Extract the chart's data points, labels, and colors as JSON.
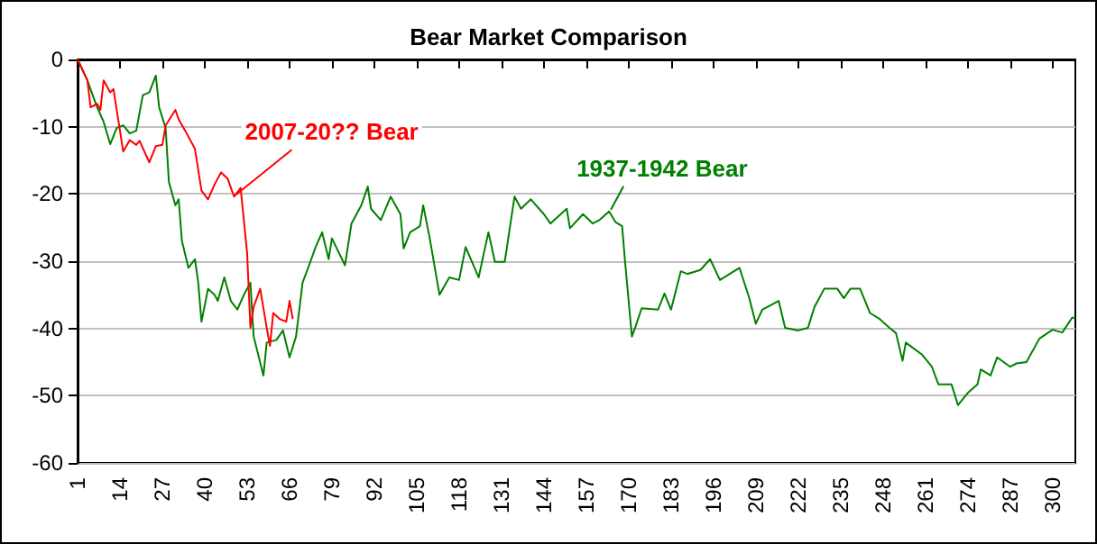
{
  "chart_data": {
    "type": "line",
    "title": "Bear Market Comparison",
    "xlim": [
      1,
      307
    ],
    "xticks": [
      1,
      14,
      27,
      40,
      53,
      66,
      79,
      92,
      105,
      118,
      131,
      144,
      157,
      170,
      183,
      196,
      209,
      222,
      235,
      248,
      261,
      274,
      287,
      300
    ],
    "ylim": [
      -60,
      0
    ],
    "yticks": [
      -60,
      -50,
      -40,
      -30,
      -20,
      -10,
      0
    ],
    "grid": "y",
    "marker": "none",
    "line_style": "solid",
    "series": [
      {
        "color": "#008000",
        "x": [
          1,
          4,
          6,
          7,
          9,
          11,
          13,
          15,
          17,
          19,
          21,
          23,
          25,
          26,
          28,
          29,
          31,
          32,
          33,
          35,
          37,
          38,
          39,
          41,
          43,
          44,
          46,
          48,
          50,
          52,
          54,
          55,
          58,
          59,
          62,
          64,
          66,
          68,
          70,
          72,
          74,
          76,
          78,
          79,
          83,
          85,
          88,
          90,
          91,
          94,
          97,
          100,
          101,
          103,
          106,
          107,
          109,
          112,
          115,
          118,
          120,
          124,
          127,
          129,
          132,
          135,
          137,
          140,
          144,
          146,
          151,
          152,
          156,
          159,
          161,
          164,
          166,
          168,
          169,
          171,
          172,
          174,
          179,
          181,
          183,
          186,
          188,
          192,
          195,
          198,
          201,
          204,
          207,
          209,
          211,
          216,
          218,
          222,
          225,
          227,
          230,
          234,
          236,
          238,
          241,
          244,
          247,
          250,
          252,
          254,
          255,
          260,
          263,
          265,
          269,
          271,
          274,
          277,
          278,
          281,
          283,
          287,
          289,
          292,
          296,
          300,
          303,
          306,
          307
        ],
        "values": [
          0,
          -3.1,
          -5.8,
          -7.1,
          -9.3,
          -12.6,
          -10.2,
          -9.8,
          -11,
          -10.6,
          -5.3,
          -4.9,
          -2.4,
          -7.1,
          -10.2,
          -18.2,
          -21.7,
          -20.8,
          -27,
          -31,
          -29.7,
          -33.2,
          -39,
          -34.1,
          -35,
          -35.9,
          -32.4,
          -35.9,
          -37.2,
          -35,
          -33.2,
          -41.2,
          -47,
          -42.1,
          -41.7,
          -40.3,
          -44.3,
          -41.2,
          -33.2,
          -30.6,
          -27.9,
          -25.7,
          -29.7,
          -26.6,
          -30.6,
          -24.4,
          -21.7,
          -18.9,
          -22.2,
          -23.9,
          -20.4,
          -23,
          -28.1,
          -25.7,
          -24.8,
          -21.7,
          -26.6,
          -35,
          -32.4,
          -32.8,
          -27.9,
          -32.4,
          -25.7,
          -30.1,
          -30.1,
          -20.4,
          -22.2,
          -20.8,
          -23,
          -24.4,
          -22.2,
          -25.1,
          -23,
          -24.4,
          -23.9,
          -22.6,
          -24.2,
          -24.8,
          -30.6,
          -41.2,
          -39.9,
          -37,
          -37.2,
          -34.8,
          -37.2,
          -31.5,
          -31.9,
          -31.3,
          -29.7,
          -32.8,
          -31.9,
          -31,
          -35.5,
          -39.3,
          -37.2,
          -35.9,
          -39.9,
          -40.3,
          -39.9,
          -36.8,
          -34.1,
          -34.1,
          -35.5,
          -34.1,
          -34.1,
          -37.7,
          -38.6,
          -39.9,
          -40.7,
          -44.8,
          -42.1,
          -43.9,
          -45.7,
          -48.3,
          -48.3,
          -51.4,
          -49.6,
          -48.3,
          -46.1,
          -47,
          -44.3,
          -45.7,
          -45.2,
          -45,
          -41.5,
          -40.2,
          -40.6,
          -38.4,
          -38.4
        ]
      },
      {
        "color": "#ff0000",
        "x": [
          1,
          4,
          5,
          7,
          8,
          9,
          11,
          12,
          15,
          17,
          19,
          20,
          23,
          25,
          27,
          28,
          31,
          32,
          34,
          37,
          39,
          41,
          43,
          45,
          47,
          49,
          51,
          53,
          54,
          55,
          57,
          59,
          60,
          61,
          63,
          65,
          66,
          67
        ],
        "values": [
          0,
          -3.1,
          -7.1,
          -6.6,
          -7.5,
          -3.1,
          -4.9,
          -4.4,
          -13.7,
          -12,
          -12.7,
          -12.1,
          -15.3,
          -12.9,
          -12.7,
          -9.8,
          -7.5,
          -8.9,
          -10.6,
          -13.3,
          -19.5,
          -20.8,
          -18.6,
          -16.8,
          -17.7,
          -20.4,
          -19.1,
          -28.8,
          -39.9,
          -36.8,
          -34.1,
          -39.9,
          -42.6,
          -37.7,
          -38.6,
          -39,
          -35.9,
          -38.6
        ]
      }
    ],
    "annotations": [
      {
        "text": "2007-20?? Bear",
        "x": 49,
        "y": -20.4
      },
      {
        "text": "1937-1942 Bear",
        "x": 164,
        "y": -22.6
      }
    ]
  }
}
